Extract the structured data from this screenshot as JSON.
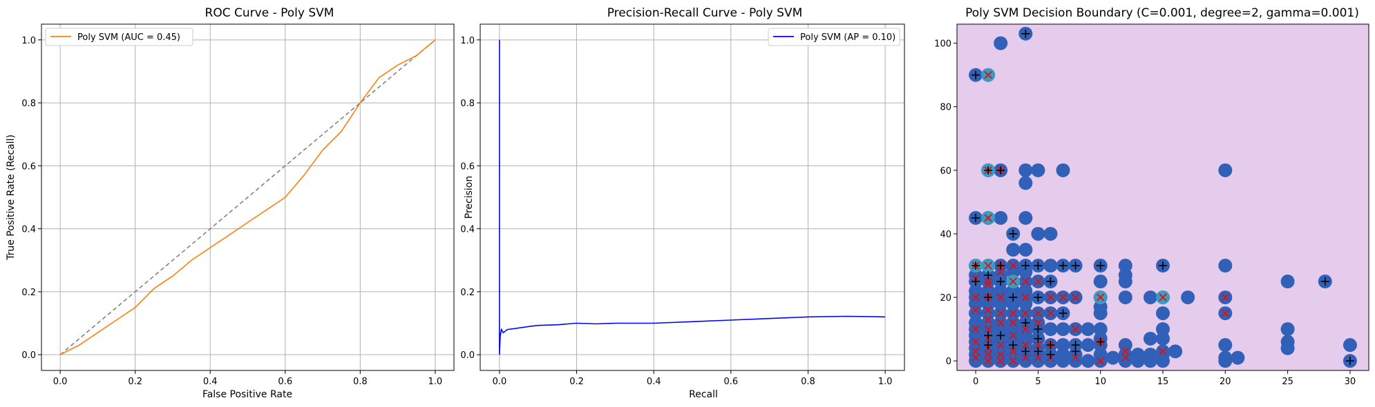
{
  "chart_data": [
    {
      "type": "line",
      "title": "ROC Curve - Poly SVM",
      "xlabel": "False Positive Rate",
      "ylabel": "True Positive Rate (Recall)",
      "xlim": [
        -0.05,
        1.05
      ],
      "ylim": [
        -0.05,
        1.05
      ],
      "xticks": [
        "0.0",
        "0.2",
        "0.4",
        "0.6",
        "0.8",
        "1.0"
      ],
      "yticks": [
        "0.0",
        "0.2",
        "0.4",
        "0.6",
        "0.8",
        "1.0"
      ],
      "grid": true,
      "legend_position": "top-left",
      "series": [
        {
          "name": "Poly SVM (AUC = 0.45)",
          "color": "#ff7f0e",
          "x": [
            0,
            0.05,
            0.1,
            0.15,
            0.2,
            0.25,
            0.3,
            0.35,
            0.4,
            0.45,
            0.5,
            0.55,
            0.6,
            0.65,
            0.7,
            0.75,
            0.8,
            0.85,
            0.9,
            0.95,
            1.0
          ],
          "y": [
            0,
            0.03,
            0.07,
            0.11,
            0.15,
            0.21,
            0.25,
            0.3,
            0.34,
            0.38,
            0.42,
            0.46,
            0.5,
            0.57,
            0.65,
            0.71,
            0.8,
            0.88,
            0.92,
            0.95,
            1.0
          ]
        },
        {
          "name": "",
          "color": "#808080",
          "dashed": true,
          "x": [
            0,
            1
          ],
          "y": [
            0,
            1
          ]
        }
      ]
    },
    {
      "type": "line",
      "title": "Precision-Recall Curve - Poly SVM",
      "xlabel": "Recall",
      "ylabel": "Precision",
      "xlim": [
        -0.05,
        1.05
      ],
      "ylim": [
        -0.05,
        1.05
      ],
      "xticks": [
        "0.0",
        "0.2",
        "0.4",
        "0.6",
        "0.8",
        "1.0"
      ],
      "yticks": [
        "0.0",
        "0.2",
        "0.4",
        "0.6",
        "0.8",
        "1.0"
      ],
      "grid": true,
      "legend_position": "top-right",
      "series": [
        {
          "name": "Poly SVM (AP = 0.10)",
          "color": "#0000ff",
          "x": [
            0,
            0,
            0.002,
            0.005,
            0.01,
            0.02,
            0.05,
            0.08,
            0.1,
            0.15,
            0.2,
            0.25,
            0.3,
            0.4,
            0.5,
            0.6,
            0.7,
            0.8,
            0.9,
            1.0
          ],
          "y": [
            1.0,
            0.0,
            0.06,
            0.08,
            0.07,
            0.08,
            0.085,
            0.09,
            0.093,
            0.095,
            0.1,
            0.098,
            0.1,
            0.1,
            0.105,
            0.11,
            0.115,
            0.12,
            0.122,
            0.12
          ]
        }
      ]
    },
    {
      "type": "scatter",
      "title": "Poly SVM Decision Boundary (C=0.001, degree=2, gamma=0.001)",
      "xlabel": "",
      "ylabel": "",
      "xlim": [
        -1.5,
        31.5
      ],
      "ylim": [
        -3,
        106
      ],
      "xticks": [
        0,
        5,
        10,
        15,
        20,
        25,
        30
      ],
      "yticks": [
        0,
        20,
        40,
        60,
        80,
        100
      ],
      "grid": false,
      "background_color": "#e5cbec",
      "point_color": "#3060b8",
      "highlight_color": "#3a9cc0",
      "points": [
        [
          0,
          0
        ],
        [
          0,
          2
        ],
        [
          0,
          4
        ],
        [
          0,
          6
        ],
        [
          0,
          8
        ],
        [
          0,
          10
        ],
        [
          0,
          12
        ],
        [
          0,
          15
        ],
        [
          0,
          18
        ],
        [
          0,
          20
        ],
        [
          0,
          22
        ],
        [
          0,
          25
        ],
        [
          0,
          27
        ],
        [
          0,
          30
        ],
        [
          0,
          45
        ],
        [
          0,
          90
        ],
        [
          1,
          0
        ],
        [
          1,
          2
        ],
        [
          1,
          4
        ],
        [
          1,
          6
        ],
        [
          1,
          8
        ],
        [
          1,
          10
        ],
        [
          1,
          12
        ],
        [
          1,
          15
        ],
        [
          1,
          18
        ],
        [
          1,
          20
        ],
        [
          1,
          22
        ],
        [
          1,
          25
        ],
        [
          1,
          27
        ],
        [
          1,
          30
        ],
        [
          1,
          45
        ],
        [
          1,
          60
        ],
        [
          1,
          90
        ],
        [
          2,
          0
        ],
        [
          2,
          2
        ],
        [
          2,
          4
        ],
        [
          2,
          6
        ],
        [
          2,
          8
        ],
        [
          2,
          10
        ],
        [
          2,
          12
        ],
        [
          2,
          15
        ],
        [
          2,
          18
        ],
        [
          2,
          20
        ],
        [
          2,
          22
        ],
        [
          2,
          25
        ],
        [
          2,
          27
        ],
        [
          2,
          30
        ],
        [
          2,
          45
        ],
        [
          2,
          60
        ],
        [
          2,
          100
        ],
        [
          3,
          0
        ],
        [
          3,
          2
        ],
        [
          3,
          4
        ],
        [
          3,
          6
        ],
        [
          3,
          8
        ],
        [
          3,
          10
        ],
        [
          3,
          12
        ],
        [
          3,
          15
        ],
        [
          3,
          18
        ],
        [
          3,
          20
        ],
        [
          3,
          22
        ],
        [
          3,
          25
        ],
        [
          3,
          28
        ],
        [
          3,
          30
        ],
        [
          3,
          35
        ],
        [
          3,
          40
        ],
        [
          4,
          0
        ],
        [
          4,
          2
        ],
        [
          4,
          4
        ],
        [
          4,
          6
        ],
        [
          4,
          8
        ],
        [
          4,
          10
        ],
        [
          4,
          12
        ],
        [
          4,
          15
        ],
        [
          4,
          18
        ],
        [
          4,
          20
        ],
        [
          4,
          22
        ],
        [
          4,
          25
        ],
        [
          4,
          28
        ],
        [
          4,
          30
        ],
        [
          4,
          35
        ],
        [
          4,
          45
        ],
        [
          4,
          56
        ],
        [
          4,
          60
        ],
        [
          4,
          103
        ],
        [
          5,
          0
        ],
        [
          5,
          2
        ],
        [
          5,
          4
        ],
        [
          5,
          7
        ],
        [
          5,
          10
        ],
        [
          5,
          12
        ],
        [
          5,
          15
        ],
        [
          5,
          20
        ],
        [
          5,
          25
        ],
        [
          5,
          30
        ],
        [
          5,
          40
        ],
        [
          5,
          60
        ],
        [
          6,
          0
        ],
        [
          6,
          2
        ],
        [
          6,
          5
        ],
        [
          6,
          10
        ],
        [
          6,
          15
        ],
        [
          6,
          20
        ],
        [
          6,
          25
        ],
        [
          6,
          30
        ],
        [
          6,
          40
        ],
        [
          7,
          0
        ],
        [
          7,
          2
        ],
        [
          7,
          5
        ],
        [
          7,
          10
        ],
        [
          7,
          15
        ],
        [
          7,
          20
        ],
        [
          7,
          30
        ],
        [
          7,
          60
        ],
        [
          8,
          0
        ],
        [
          8,
          2
        ],
        [
          8,
          5
        ],
        [
          8,
          10
        ],
        [
          8,
          20
        ],
        [
          8,
          30
        ],
        [
          9,
          0
        ],
        [
          9,
          5
        ],
        [
          9,
          10
        ],
        [
          10,
          0
        ],
        [
          10,
          2
        ],
        [
          10,
          5
        ],
        [
          10,
          7
        ],
        [
          10,
          10
        ],
        [
          10,
          15
        ],
        [
          10,
          17
        ],
        [
          10,
          20
        ],
        [
          10,
          25
        ],
        [
          10,
          30
        ],
        [
          11,
          1
        ],
        [
          12,
          0
        ],
        [
          12,
          2
        ],
        [
          12,
          5
        ],
        [
          12,
          20
        ],
        [
          12,
          25
        ],
        [
          12,
          27
        ],
        [
          12,
          30
        ],
        [
          13,
          0
        ],
        [
          13,
          2
        ],
        [
          14,
          0
        ],
        [
          14,
          2
        ],
        [
          14,
          7
        ],
        [
          14,
          20
        ],
        [
          15,
          0
        ],
        [
          15,
          2
        ],
        [
          15,
          3
        ],
        [
          15,
          7
        ],
        [
          15,
          10
        ],
        [
          15,
          15
        ],
        [
          15,
          20
        ],
        [
          15,
          30
        ],
        [
          16,
          3
        ],
        [
          17,
          20
        ],
        [
          20,
          0
        ],
        [
          20,
          1
        ],
        [
          20,
          5
        ],
        [
          20,
          15
        ],
        [
          20,
          20
        ],
        [
          20,
          30
        ],
        [
          20,
          60
        ],
        [
          21,
          1
        ],
        [
          25,
          4
        ],
        [
          25,
          6
        ],
        [
          25,
          10
        ],
        [
          25,
          25
        ],
        [
          28,
          25
        ],
        [
          30,
          0
        ],
        [
          30,
          5
        ]
      ],
      "highlight_points": [
        [
          0,
          30
        ],
        [
          1,
          30
        ],
        [
          1,
          60
        ],
        [
          1,
          90
        ],
        [
          1,
          45
        ],
        [
          3,
          25
        ],
        [
          10,
          20
        ],
        [
          15,
          20
        ]
      ],
      "plus_markers": [
        [
          0,
          90
        ],
        [
          0,
          45
        ],
        [
          0,
          30
        ],
        [
          0,
          25
        ],
        [
          1,
          60
        ],
        [
          1,
          27
        ],
        [
          1,
          20
        ],
        [
          1,
          8
        ],
        [
          1,
          5
        ],
        [
          2,
          60
        ],
        [
          2,
          30
        ],
        [
          2,
          25
        ],
        [
          2,
          8
        ],
        [
          3,
          40
        ],
        [
          3,
          20
        ],
        [
          3,
          5
        ],
        [
          4,
          103
        ],
        [
          4,
          30
        ],
        [
          4,
          12
        ],
        [
          4,
          3
        ],
        [
          5,
          30
        ],
        [
          5,
          20
        ],
        [
          5,
          10
        ],
        [
          5,
          7
        ],
        [
          5,
          3
        ],
        [
          6,
          25
        ],
        [
          6,
          5
        ],
        [
          6,
          2
        ],
        [
          7,
          30
        ],
        [
          7,
          15
        ],
        [
          8,
          30
        ],
        [
          8,
          5
        ],
        [
          8,
          3
        ],
        [
          10,
          30
        ],
        [
          10,
          6
        ],
        [
          15,
          30
        ],
        [
          28,
          25
        ],
        [
          30,
          0
        ]
      ],
      "x_markers": [
        [
          0,
          30
        ],
        [
          0,
          26
        ],
        [
          0,
          20
        ],
        [
          0,
          16
        ],
        [
          0,
          10
        ],
        [
          0,
          6
        ],
        [
          0,
          3
        ],
        [
          0,
          1
        ],
        [
          1,
          90
        ],
        [
          1,
          60
        ],
        [
          1,
          45
        ],
        [
          1,
          30
        ],
        [
          1,
          25
        ],
        [
          1,
          24
        ],
        [
          1,
          20
        ],
        [
          1,
          16
        ],
        [
          1,
          13
        ],
        [
          1,
          10
        ],
        [
          1,
          7
        ],
        [
          1,
          4
        ],
        [
          1,
          2
        ],
        [
          1,
          0
        ],
        [
          2,
          60
        ],
        [
          2,
          30
        ],
        [
          2,
          28
        ],
        [
          2,
          20
        ],
        [
          2,
          15
        ],
        [
          2,
          12
        ],
        [
          2,
          5
        ],
        [
          2,
          2
        ],
        [
          2,
          0
        ],
        [
          3,
          30
        ],
        [
          3,
          25
        ],
        [
          3,
          15
        ],
        [
          3,
          12
        ],
        [
          3,
          8
        ],
        [
          3,
          3
        ],
        [
          3,
          0
        ],
        [
          4,
          25
        ],
        [
          4,
          20
        ],
        [
          4,
          15
        ],
        [
          4,
          10
        ],
        [
          4,
          5
        ],
        [
          4,
          1
        ],
        [
          5,
          25
        ],
        [
          5,
          15
        ],
        [
          5,
          12
        ],
        [
          5,
          5
        ],
        [
          5,
          1
        ],
        [
          6,
          20
        ],
        [
          6,
          15
        ],
        [
          6,
          5
        ],
        [
          6,
          1
        ],
        [
          7,
          20
        ],
        [
          8,
          20
        ],
        [
          8,
          10
        ],
        [
          8,
          1
        ],
        [
          10,
          20
        ],
        [
          10,
          6
        ],
        [
          10,
          0
        ],
        [
          12,
          3
        ],
        [
          12,
          1
        ],
        [
          15,
          20
        ],
        [
          15,
          3
        ],
        [
          20,
          20
        ],
        [
          20,
          15
        ]
      ]
    }
  ]
}
